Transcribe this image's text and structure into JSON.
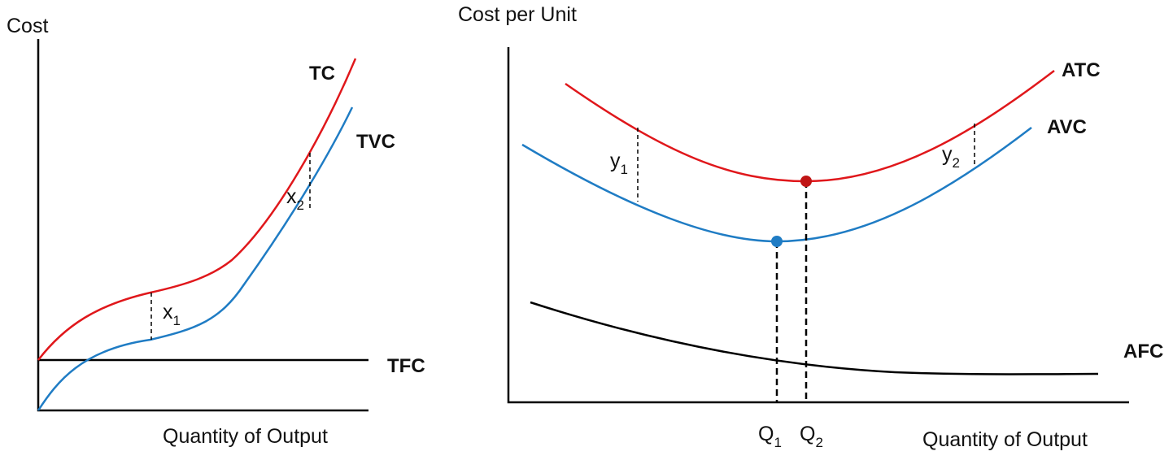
{
  "left_panel": {
    "y_axis_label": "Cost",
    "x_axis_label": "Quantity of Output",
    "curves": {
      "tc": "TC",
      "tvc": "TVC",
      "tfc": "TFC"
    },
    "gaps": [
      {
        "base": "x",
        "sub": "1"
      },
      {
        "base": "x",
        "sub": "2"
      }
    ]
  },
  "right_panel": {
    "y_axis_label": "Cost per Unit",
    "x_axis_label": "Quantity of Output",
    "curves": {
      "atc": "ATC",
      "avc": "AVC",
      "afc": "AFC"
    },
    "gaps": [
      {
        "base": "y",
        "sub": "1"
      },
      {
        "base": "y",
        "sub": "2"
      }
    ],
    "quantities": [
      {
        "base": "Q",
        "sub": "1"
      },
      {
        "base": "Q",
        "sub": "2"
      }
    ]
  }
}
